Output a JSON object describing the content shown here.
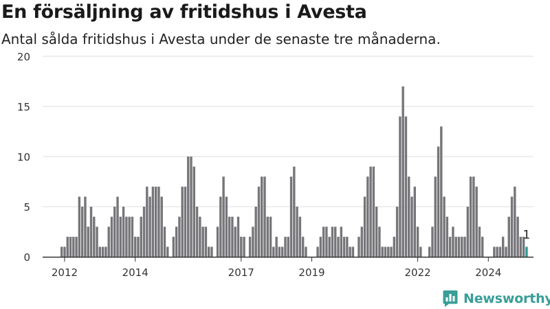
{
  "header": {
    "title": "En försäljning av fritidshus i Avesta",
    "subtitle": "Antal sålda fritidshus i Avesta under de senaste tre månaderna."
  },
  "brand": {
    "name": "Newsworthy"
  },
  "colors": {
    "bar": "#767579",
    "highlight": "#2a9b94",
    "grid": "#dddddd",
    "axis": "#333333",
    "text": "#333333"
  },
  "chart_data": {
    "type": "bar",
    "x_ticks": [
      "2012",
      "2014",
      "2017",
      "2019",
      "2022",
      "2024"
    ],
    "y_ticks": [
      0,
      5,
      10,
      15,
      20
    ],
    "ylim": [
      0,
      20
    ],
    "grid": true,
    "annotation": "1",
    "series": [
      {
        "values": [
          1,
          1,
          2,
          2,
          2,
          2,
          6,
          5,
          6,
          3,
          5,
          4,
          3,
          1,
          1,
          1,
          3,
          4,
          5,
          6,
          4,
          5,
          4,
          4,
          4,
          2,
          2,
          4,
          5,
          7,
          6,
          7,
          7,
          7,
          6,
          3,
          1,
          0,
          2,
          3,
          4,
          7,
          7,
          10,
          10,
          9,
          5,
          4,
          3,
          3,
          1,
          1,
          0,
          3,
          6,
          8,
          6,
          4,
          4,
          3,
          4,
          2,
          2,
          0,
          2,
          3,
          5,
          7,
          8,
          8,
          4,
          4,
          1,
          2,
          1,
          1,
          2,
          2,
          8,
          9,
          5,
          4,
          2,
          1,
          0,
          0,
          0,
          1,
          2,
          3,
          3,
          2,
          3,
          3,
          2,
          3,
          2,
          2,
          1,
          1,
          0,
          2,
          3,
          6,
          8,
          9,
          9,
          5,
          3,
          1,
          1,
          1,
          1,
          2,
          5,
          14,
          17,
          14,
          8,
          6,
          7,
          3,
          1,
          0,
          0,
          1,
          3,
          8,
          11,
          13,
          6,
          4,
          2,
          3,
          2,
          2,
          2,
          2,
          5,
          8,
          8,
          7,
          3,
          2,
          0,
          0,
          0,
          1,
          1,
          1,
          2,
          1,
          4,
          6,
          7,
          4,
          2,
          2,
          1
        ]
      }
    ]
  }
}
